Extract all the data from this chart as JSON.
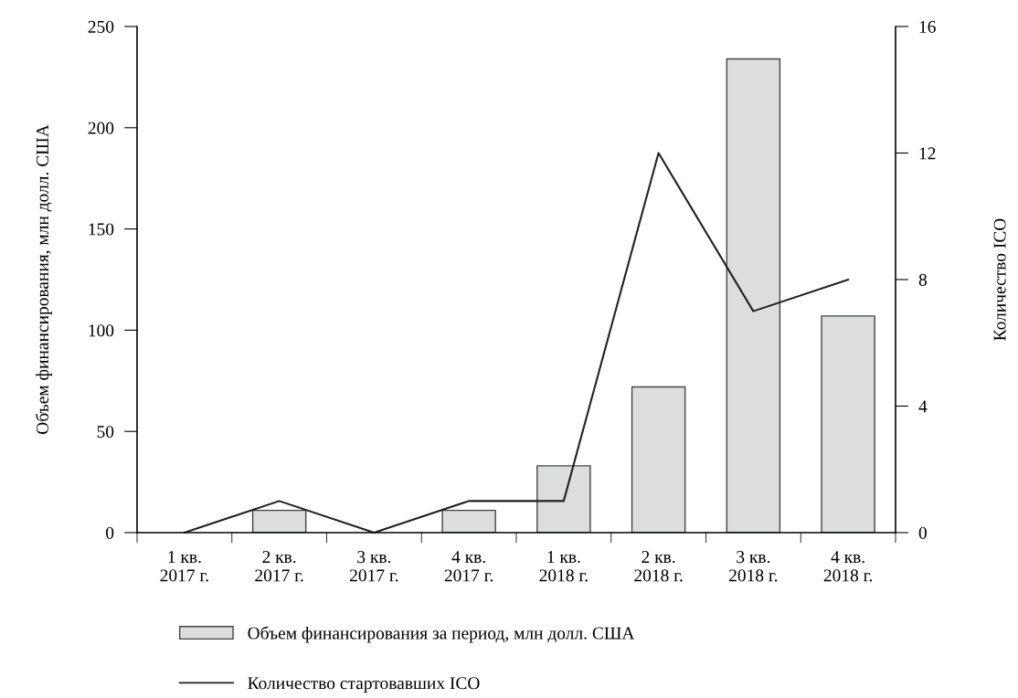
{
  "chart_data": {
    "type": "bar",
    "ylabel": "Объем финансирования, млн долл. США",
    "y2label": "Количество ICO",
    "categories": [
      "1 кв.\n2017 г.",
      "2 кв.\n2017 г.",
      "3 кв.\n2017 г.",
      "4 кв.\n2017 г.",
      "1 кв.\n2018 г.",
      "2 кв.\n2018 г.",
      "3 кв.\n2018 г.",
      "4 кв.\n2018 г."
    ],
    "series": [
      {
        "name": "Объем финансирования за период, млн долл. США",
        "type": "bar",
        "color": "#dcdddd",
        "values": [
          0,
          11,
          0,
          11,
          33,
          72,
          234,
          107
        ]
      },
      {
        "name": "Количество стартовавших ICO",
        "type": "line",
        "axis": "y2",
        "color": "#231f20",
        "values": [
          0,
          1,
          0,
          1,
          1,
          12,
          7,
          8
        ]
      }
    ],
    "ylim": [
      0,
      250
    ],
    "yticks": [
      0,
      50,
      100,
      150,
      200,
      250
    ],
    "y2lim": [
      0,
      16
    ],
    "y2ticks": [
      0,
      4,
      8,
      12,
      16
    ],
    "legend": "bottom",
    "grid": false,
    "marker": "none",
    "line_style": "solid"
  }
}
